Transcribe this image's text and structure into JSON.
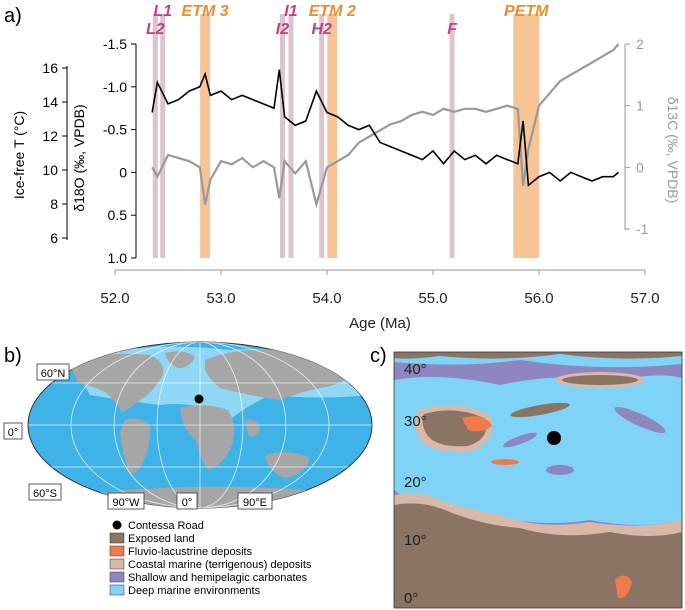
{
  "panel_a": {
    "label": "a)",
    "xlabel": "Age (Ma)",
    "x_ticks": [
      "52.0",
      "53.0",
      "54.0",
      "55.0",
      "56.0",
      "57.0"
    ],
    "y_left_temp_label": "Ice-free T (°C)",
    "y_left_temp_ticks": [
      "16",
      "14",
      "12",
      "10",
      "8",
      "6"
    ],
    "y_d18O_label": "δ18O (‰, VPDB)",
    "y_d18O_ticks": [
      "-1.5",
      "-1.0",
      "-0.5",
      "0",
      "0.5",
      "1.0"
    ],
    "y_d13C_label": "δ13C (‰, VPDB)",
    "y_d13C_ticks": [
      "2",
      "1",
      "0",
      "-1"
    ],
    "events": [
      {
        "name": "L1",
        "color": "#c2407e",
        "age": 52.45
      },
      {
        "name": "L2",
        "color": "#c2407e",
        "age": 52.38
      },
      {
        "name": "ETM 3",
        "color": "#f08b2c",
        "age": 52.85
      },
      {
        "name": "I1",
        "color": "#c2407e",
        "age": 53.66
      },
      {
        "name": "I2",
        "color": "#c2407e",
        "age": 53.58
      },
      {
        "name": "ETM 2",
        "color": "#f08b2c",
        "age": 54.05
      },
      {
        "name": "H2",
        "color": "#c2407e",
        "age": 53.95
      },
      {
        "name": "F",
        "color": "#c2407e",
        "age": 55.18
      },
      {
        "name": "PETM",
        "color": "#f08b2c",
        "age": 55.88
      }
    ]
  },
  "chart_data": {
    "type": "line",
    "title": "",
    "xlabel": "Age (Ma)",
    "xlim": [
      52.0,
      57.0
    ],
    "series": [
      {
        "name": "δ18O (‰, VPDB)",
        "axis": "left-reversed",
        "ylim": [
          -1.5,
          1.0
        ],
        "color": "#000000",
        "x": [
          52.35,
          52.4,
          52.5,
          52.6,
          52.7,
          52.8,
          52.85,
          52.9,
          53.0,
          53.1,
          53.2,
          53.3,
          53.4,
          53.5,
          53.55,
          53.6,
          53.7,
          53.8,
          53.9,
          54.0,
          54.1,
          54.2,
          54.3,
          54.4,
          54.5,
          54.6,
          54.7,
          54.8,
          54.9,
          55.0,
          55.1,
          55.2,
          55.3,
          55.4,
          55.5,
          55.6,
          55.7,
          55.8,
          55.85,
          55.9,
          56.0,
          56.1,
          56.2,
          56.3,
          56.4,
          56.5,
          56.6,
          56.7,
          56.75
        ],
        "y": [
          -0.7,
          -1.05,
          -0.8,
          -0.85,
          -0.95,
          -1.0,
          -1.15,
          -0.9,
          -0.95,
          -0.85,
          -0.9,
          -0.85,
          -0.8,
          -0.75,
          -1.2,
          -0.65,
          -0.55,
          -0.6,
          -0.95,
          -0.7,
          -0.65,
          -0.55,
          -0.5,
          -0.55,
          -0.35,
          -0.3,
          -0.25,
          -0.2,
          -0.15,
          -0.25,
          -0.1,
          -0.25,
          -0.15,
          -0.2,
          -0.1,
          -0.2,
          -0.15,
          -0.1,
          -0.6,
          0.15,
          0.05,
          0.0,
          0.1,
          0.0,
          0.05,
          0.1,
          0.05,
          0.05,
          0.0
        ]
      },
      {
        "name": "δ13C (‰, VPDB)",
        "axis": "right",
        "ylim": [
          -1,
          2
        ],
        "color": "#9a9a9a",
        "x": [
          52.35,
          52.4,
          52.5,
          52.6,
          52.7,
          52.8,
          52.85,
          52.9,
          53.0,
          53.1,
          53.2,
          53.3,
          53.4,
          53.5,
          53.55,
          53.6,
          53.7,
          53.8,
          53.9,
          54.0,
          54.1,
          54.2,
          54.3,
          54.4,
          54.5,
          54.6,
          54.7,
          54.8,
          54.9,
          55.0,
          55.1,
          55.2,
          55.3,
          55.4,
          55.5,
          55.6,
          55.7,
          55.8,
          55.85,
          55.9,
          56.0,
          56.1,
          56.2,
          56.3,
          56.4,
          56.5,
          56.6,
          56.7,
          56.75
        ],
        "y": [
          0.0,
          -0.15,
          0.2,
          0.15,
          0.1,
          0.0,
          -0.6,
          -0.2,
          0.1,
          0.05,
          0.15,
          0.0,
          0.1,
          0.0,
          -0.5,
          0.1,
          -0.1,
          0.1,
          -0.6,
          0.0,
          0.1,
          0.2,
          0.4,
          0.5,
          0.6,
          0.7,
          0.75,
          0.85,
          0.9,
          0.85,
          0.95,
          0.9,
          0.95,
          0.95,
          0.9,
          0.95,
          1.0,
          0.95,
          -0.3,
          0.3,
          1.0,
          1.2,
          1.4,
          1.5,
          1.6,
          1.7,
          1.8,
          1.9,
          2.0
        ]
      }
    ]
  },
  "panel_b": {
    "label": "b)",
    "lat_labels": [
      "60°N",
      "0°",
      "60°S"
    ],
    "lon_labels": [
      "90°W",
      "0°",
      "90°E"
    ]
  },
  "panel_c": {
    "label": "c)",
    "lat_labels": [
      "40°",
      "30°",
      "20°",
      "10°",
      "0°"
    ]
  },
  "legend": {
    "items": [
      {
        "label": "Contessa Road",
        "color": "#000000",
        "kind": "dot"
      },
      {
        "label": "Exposed land",
        "color": "#8b7463",
        "kind": "box"
      },
      {
        "label": "Fluvio-lacustrine deposits",
        "color": "#f07a4a",
        "kind": "box"
      },
      {
        "label": "Coastal marine (terrigenous) deposits",
        "color": "#d8b9a8",
        "kind": "box"
      },
      {
        "label": "Shallow and hemipelagic carbonates",
        "color": "#8d86c0",
        "kind": "box"
      },
      {
        "label": "Deep marine environments",
        "color": "#7fd3f7",
        "kind": "box"
      }
    ]
  }
}
